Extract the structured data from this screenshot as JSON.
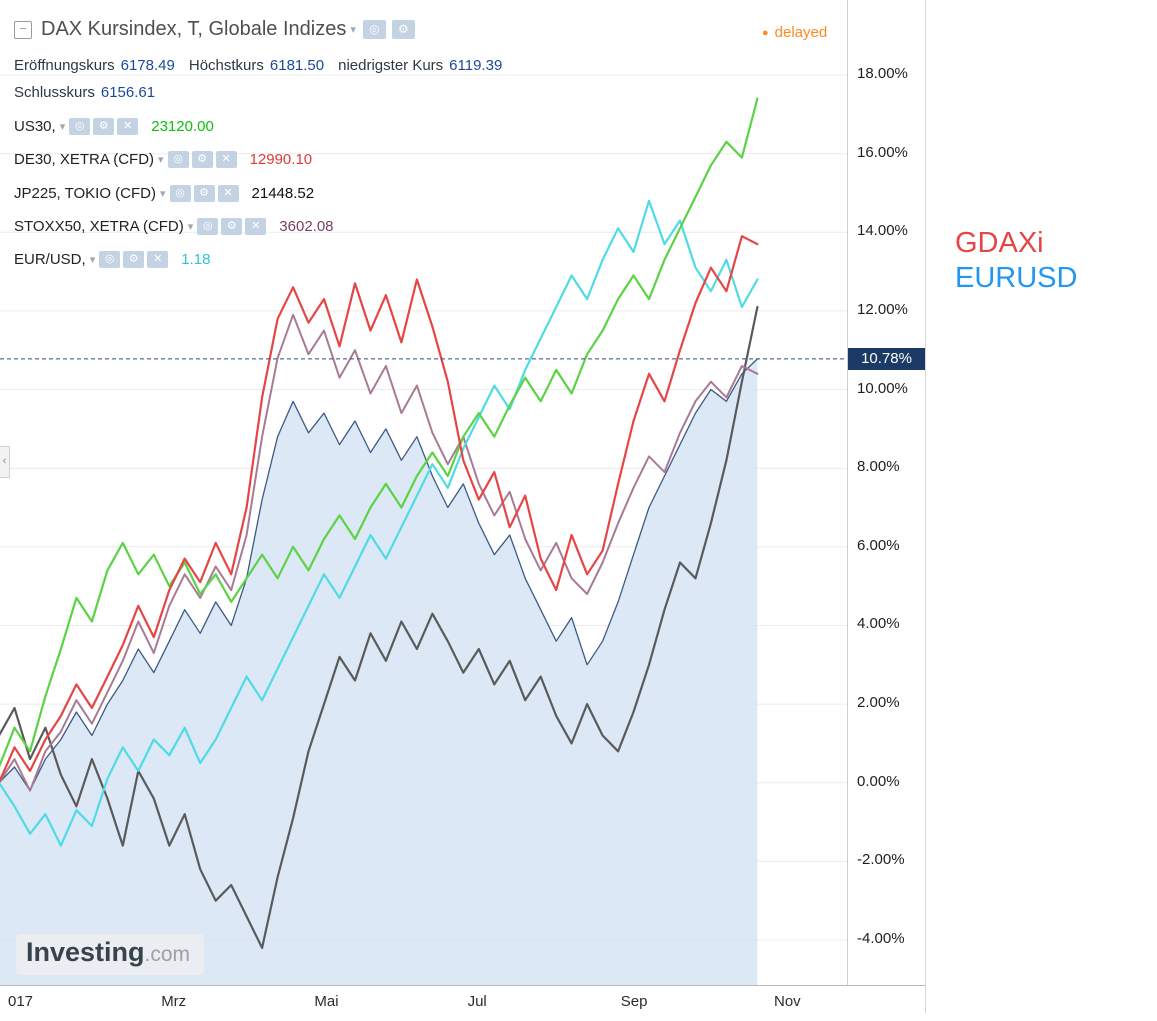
{
  "header": {
    "title": "DAX Kursindex, T, Globale Indizes",
    "delayed": {
      "label": "delayed",
      "color": "#ff8a1e"
    },
    "ohlc": {
      "open_label": "Eröffnungskurs",
      "open": "6178.49",
      "high_label": "Höchstkurs",
      "high": "6181.50",
      "low_label": "niedrigster Kurs",
      "low": "6119.39",
      "close_label": "Schlusskurs",
      "close": "6156.61"
    },
    "overlays": [
      {
        "name": "US30,",
        "value": "23120.00",
        "value_color": "#0fbf0f"
      },
      {
        "name": "DE30, XETRA (CFD)",
        "value": "12990.10",
        "value_color": "#e03a3a"
      },
      {
        "name": "JP225, TOKIO (CFD)",
        "value": "21448.52",
        "value_color": "#111111"
      },
      {
        "name": "STOXX50, XETRA (CFD)",
        "value": "3602.08",
        "value_color": "#7b3f63"
      },
      {
        "name": "EUR/USD,",
        "value": "1.18",
        "value_color": "#2bc4d9"
      }
    ]
  },
  "right_panel": {
    "labels": [
      {
        "text": "GDAXi",
        "color": "#e64545"
      },
      {
        "text": "EURUSD",
        "color": "#2196f3"
      }
    ]
  },
  "price_scale": {
    "tick_labels": [
      "18.00%",
      "16.00%",
      "14.00%",
      "12.00%",
      "10.00%",
      "8.00%",
      "6.00%",
      "4.00%",
      "2.00%",
      "0.00%",
      "-2.00%",
      "-4.00%"
    ],
    "tick_values": [
      18,
      16,
      14,
      12,
      10,
      8,
      6,
      4,
      2,
      0,
      -2,
      -4
    ],
    "current": {
      "label": "10.78%",
      "value": 10.78,
      "bg": "#1b3a66"
    }
  },
  "watermark": {
    "brand": "Investing",
    "suffix": ".com"
  },
  "chart_data": {
    "type": "line",
    "title": "DAX Kursindex vs global indices, percent change 2017",
    "grid_color": "#ececec",
    "current_value_pct": 10.78,
    "current_line_color": "#2a4f86",
    "x_axis": {
      "unit": "months_from_jan_2017",
      "start": -0.3,
      "end": 9.6,
      "tick_labels": [
        "017",
        "Mrz",
        "Mai",
        "Jul",
        "Sep",
        "Nov"
      ],
      "tick_months": [
        0,
        2,
        4,
        6,
        8,
        10
      ]
    },
    "y_axis": {
      "unit": "percent_change",
      "ylim": [
        -5.1,
        19.9
      ],
      "ticks": [
        18,
        16,
        14,
        12,
        10,
        8,
        6,
        4,
        2,
        0,
        -2,
        -4
      ]
    },
    "series": [
      {
        "name": "DAX Kursindex",
        "color": "#3c5a86",
        "width": 1.3,
        "area": true,
        "area_color": "#d6e4f4",
        "area_opacity": 0.85,
        "values": [
          0.0,
          0.4,
          -0.2,
          0.6,
          1.1,
          1.8,
          1.2,
          2.0,
          2.6,
          3.4,
          2.8,
          3.6,
          4.4,
          3.8,
          4.6,
          4.0,
          5.2,
          7.2,
          8.8,
          9.7,
          8.9,
          9.4,
          8.6,
          9.2,
          8.4,
          9.0,
          8.2,
          8.8,
          7.8,
          7.0,
          7.6,
          6.6,
          5.8,
          6.3,
          5.2,
          4.4,
          3.6,
          4.2,
          3.0,
          3.6,
          4.6,
          5.8,
          7.0,
          7.8,
          8.6,
          9.4,
          10.0,
          9.7,
          10.4,
          10.78
        ]
      },
      {
        "name": "JP225, TOKIO (CFD)",
        "color": "#5a5a5a",
        "width": 2.2,
        "values": [
          1.2,
          1.9,
          0.6,
          1.4,
          0.2,
          -0.6,
          0.6,
          -0.4,
          -1.6,
          0.3,
          -0.4,
          -1.6,
          -0.8,
          -2.2,
          -3.0,
          -2.6,
          -3.4,
          -4.2,
          -2.4,
          -0.9,
          0.8,
          2.0,
          3.2,
          2.6,
          3.8,
          3.1,
          4.1,
          3.4,
          4.3,
          3.6,
          2.8,
          3.4,
          2.5,
          3.1,
          2.1,
          2.7,
          1.7,
          1.0,
          2.0,
          1.2,
          0.8,
          1.8,
          3.0,
          4.4,
          5.6,
          5.2,
          6.6,
          8.2,
          10.2,
          12.1
        ]
      },
      {
        "name": "STOXX50, XETRA (CFD)",
        "color": "#a87b95",
        "width": 2,
        "values": [
          0.0,
          0.6,
          -0.2,
          0.8,
          1.3,
          2.1,
          1.5,
          2.3,
          3.1,
          4.1,
          3.3,
          4.5,
          5.3,
          4.7,
          5.5,
          4.9,
          6.3,
          8.8,
          10.8,
          11.9,
          10.9,
          11.5,
          10.3,
          11.0,
          9.9,
          10.6,
          9.4,
          10.1,
          8.9,
          8.1,
          8.8,
          7.6,
          6.8,
          7.4,
          6.2,
          5.4,
          6.1,
          5.2,
          4.8,
          5.6,
          6.6,
          7.5,
          8.3,
          7.9,
          8.9,
          9.7,
          10.2,
          9.8,
          10.6,
          10.4
        ]
      },
      {
        "name": "EUR/USD",
        "color": "#4fdbe4",
        "width": 2.2,
        "values": [
          0.0,
          -0.6,
          -1.3,
          -0.8,
          -1.6,
          -0.7,
          -1.1,
          0.1,
          0.9,
          0.3,
          1.1,
          0.7,
          1.4,
          0.5,
          1.1,
          1.9,
          2.7,
          2.1,
          2.9,
          3.7,
          4.5,
          5.3,
          4.7,
          5.5,
          6.3,
          5.7,
          6.5,
          7.3,
          8.1,
          7.5,
          8.5,
          9.3,
          10.1,
          9.5,
          10.5,
          11.3,
          12.1,
          12.9,
          12.3,
          13.3,
          14.1,
          13.5,
          14.8,
          13.7,
          14.3,
          13.1,
          12.5,
          13.3,
          12.1,
          12.8
        ]
      },
      {
        "name": "US30",
        "color": "#5cd245",
        "width": 2.2,
        "values": [
          0.4,
          1.4,
          0.8,
          2.2,
          3.4,
          4.7,
          4.1,
          5.4,
          6.1,
          5.3,
          5.8,
          5.0,
          5.6,
          4.8,
          5.3,
          4.6,
          5.2,
          5.8,
          5.2,
          6.0,
          5.4,
          6.2,
          6.8,
          6.2,
          7.0,
          7.6,
          7.0,
          7.8,
          8.4,
          7.8,
          8.8,
          9.4,
          8.8,
          9.6,
          10.3,
          9.7,
          10.5,
          9.9,
          10.9,
          11.5,
          12.3,
          12.9,
          12.3,
          13.3,
          14.1,
          14.9,
          15.7,
          16.3,
          15.9,
          17.4
        ]
      },
      {
        "name": "DE30, XETRA (CFD)",
        "color": "#e64545",
        "width": 2.2,
        "values": [
          0.0,
          0.9,
          0.3,
          1.1,
          1.7,
          2.5,
          1.9,
          2.7,
          3.5,
          4.5,
          3.7,
          4.9,
          5.7,
          5.1,
          6.1,
          5.3,
          7.0,
          9.8,
          11.8,
          12.6,
          11.7,
          12.3,
          11.1,
          12.7,
          11.5,
          12.4,
          11.2,
          12.8,
          11.6,
          10.2,
          8.2,
          7.2,
          7.9,
          6.5,
          7.3,
          5.7,
          4.9,
          6.3,
          5.3,
          5.9,
          7.6,
          9.2,
          10.4,
          9.7,
          11.0,
          12.2,
          13.1,
          12.5,
          13.9,
          13.7
        ]
      }
    ]
  }
}
